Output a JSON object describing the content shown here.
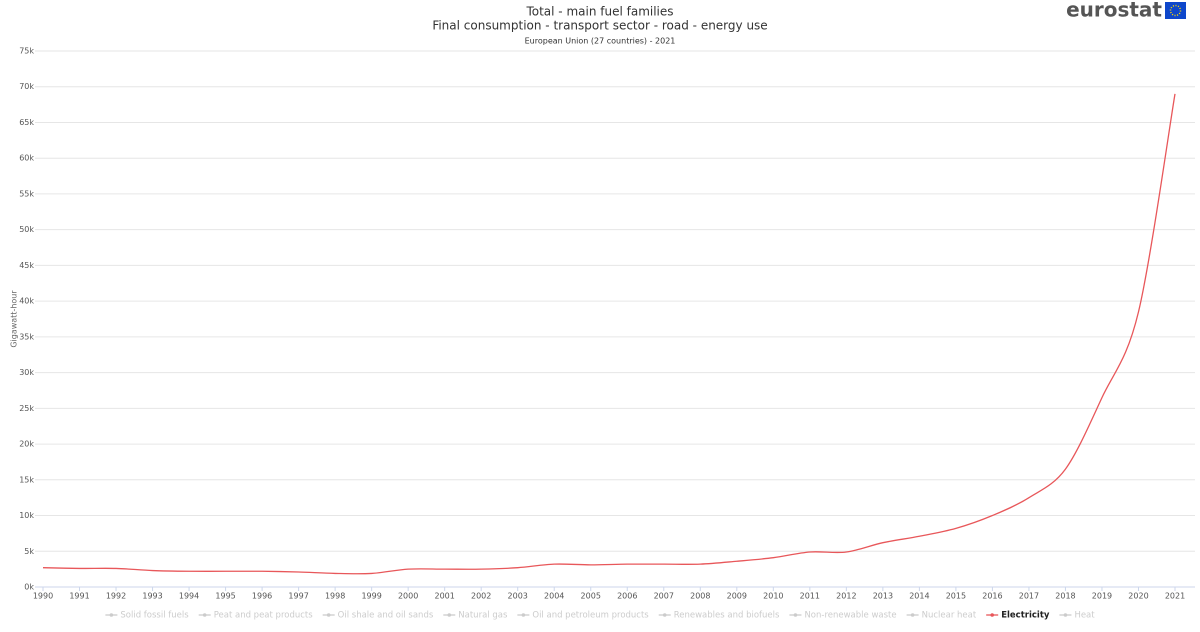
{
  "brand": "eurostat",
  "chart_data": {
    "type": "line",
    "title": "Total - main fuel families",
    "title2": "Final consumption - transport sector - road - energy use",
    "subtitle": "European Union (27 countries) - 2021",
    "y_label": "Gigawatt-hour",
    "x": [
      1990,
      1991,
      1992,
      1993,
      1994,
      1995,
      1996,
      1997,
      1998,
      1999,
      2000,
      2001,
      2002,
      2003,
      2004,
      2005,
      2006,
      2007,
      2008,
      2009,
      2010,
      2011,
      2012,
      2013,
      2014,
      2015,
      2016,
      2017,
      2018,
      2019,
      2020,
      2021
    ],
    "xlim": [
      1990,
      2021
    ],
    "xticks": [
      1990,
      1991,
      1992,
      1993,
      1994,
      1995,
      1996,
      1997,
      1998,
      1999,
      2000,
      2001,
      2002,
      2003,
      2004,
      2005,
      2006,
      2007,
      2008,
      2009,
      2010,
      2011,
      2012,
      2013,
      2014,
      2015,
      2016,
      2017,
      2018,
      2019,
      2020,
      2021
    ],
    "ylim": [
      0,
      75000
    ],
    "yticks": [
      {
        "value": 0,
        "label": "0k"
      },
      {
        "value": 5000,
        "label": "5k"
      },
      {
        "value": 10000,
        "label": "10k"
      },
      {
        "value": 15000,
        "label": "15k"
      },
      {
        "value": 20000,
        "label": "20k"
      },
      {
        "value": 25000,
        "label": "25k"
      },
      {
        "value": 30000,
        "label": "30k"
      },
      {
        "value": 35000,
        "label": "35k"
      },
      {
        "value": 40000,
        "label": "40k"
      },
      {
        "value": 45000,
        "label": "45k"
      },
      {
        "value": 50000,
        "label": "50k"
      },
      {
        "value": 55000,
        "label": "55k"
      },
      {
        "value": 60000,
        "label": "60k"
      },
      {
        "value": 65000,
        "label": "65k"
      },
      {
        "value": 70000,
        "label": "70k"
      },
      {
        "value": 75000,
        "label": "75k"
      }
    ],
    "grid": true,
    "legend": "bottom",
    "series": [
      {
        "name": "Solid fossil fuels",
        "color": "#cccccc",
        "hidden": true
      },
      {
        "name": "Peat and peat products",
        "color": "#cccccc",
        "hidden": true
      },
      {
        "name": "Oil shale and oil sands",
        "color": "#cccccc",
        "hidden": true
      },
      {
        "name": "Natural gas",
        "color": "#cccccc",
        "hidden": true
      },
      {
        "name": "Oil and petroleum products",
        "color": "#cccccc",
        "hidden": true
      },
      {
        "name": "Renewables and biofuels",
        "color": "#cccccc",
        "hidden": true
      },
      {
        "name": "Non-renewable waste",
        "color": "#cccccc",
        "hidden": true
      },
      {
        "name": "Nuclear heat",
        "color": "#cccccc",
        "hidden": true
      },
      {
        "name": "Electricity",
        "color": "#e8575a",
        "values": [
          2700,
          2600,
          2600,
          2300,
          2200,
          2200,
          2200,
          2100,
          1900,
          1900,
          2500,
          2500,
          2500,
          2700,
          3200,
          3100,
          3200,
          3200,
          3200,
          3600,
          4100,
          4900,
          4900,
          6200,
          7100,
          8200,
          10000,
          12500,
          16500,
          26500,
          38500,
          69000
        ]
      },
      {
        "name": "Heat",
        "color": "#cccccc",
        "hidden": true
      }
    ]
  }
}
